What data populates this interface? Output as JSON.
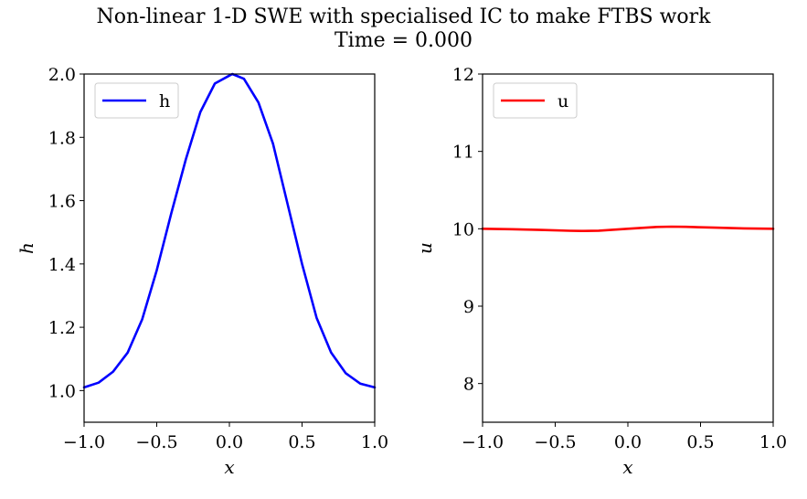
{
  "title": "Non-linear 1-D SWE with specialised IC to make FTBS work",
  "subtitle": "Time = 0.000",
  "chart_data": [
    {
      "type": "line",
      "xlabel": "x",
      "ylabel": "h",
      "xlim": [
        -1.0,
        1.0
      ],
      "ylim": [
        0.9,
        2.0
      ],
      "xticks": [
        -1.0,
        -0.5,
        0.0,
        0.5,
        1.0
      ],
      "xtick_labels": [
        "−1.0",
        "−0.5",
        "0.0",
        "0.5",
        "1.0"
      ],
      "yticks": [
        1.0,
        1.2,
        1.4,
        1.6,
        1.8,
        2.0
      ],
      "ytick_labels": [
        "1.0",
        "1.2",
        "1.4",
        "1.6",
        "1.8",
        "2.0"
      ],
      "legend": "top-left",
      "grid": false,
      "series": [
        {
          "name": "h",
          "color": "#0000ff",
          "x": [
            -1.0,
            -0.9,
            -0.8,
            -0.7,
            -0.6,
            -0.5,
            -0.4,
            -0.3,
            -0.2,
            -0.1,
            0.0,
            0.02,
            0.1,
            0.2,
            0.3,
            0.4,
            0.5,
            0.6,
            0.7,
            0.8,
            0.9,
            1.0
          ],
          "y": [
            1.01,
            1.025,
            1.06,
            1.12,
            1.225,
            1.38,
            1.56,
            1.73,
            1.88,
            1.97,
            1.995,
            2.0,
            1.985,
            1.91,
            1.78,
            1.59,
            1.4,
            1.23,
            1.12,
            1.055,
            1.022,
            1.01
          ]
        }
      ]
    },
    {
      "type": "line",
      "xlabel": "x",
      "ylabel": "u",
      "xlim": [
        -1.0,
        1.0
      ],
      "ylim": [
        7.5,
        12.0
      ],
      "xticks": [
        -1.0,
        -0.5,
        0.0,
        0.5,
        1.0
      ],
      "xtick_labels": [
        "−1.0",
        "−0.5",
        "0.0",
        "0.5",
        "1.0"
      ],
      "yticks": [
        8,
        9,
        10,
        11,
        12
      ],
      "ytick_labels": [
        "8",
        "9",
        "10",
        "11",
        "12"
      ],
      "legend": "top-left",
      "grid": false,
      "series": [
        {
          "name": "u",
          "color": "#ff0000",
          "x": [
            -1.0,
            -0.8,
            -0.6,
            -0.4,
            -0.3,
            -0.2,
            0.0,
            0.2,
            0.3,
            0.4,
            0.6,
            0.8,
            1.0
          ],
          "y": [
            10.0,
            9.995,
            9.985,
            9.975,
            9.972,
            9.976,
            10.0,
            10.024,
            10.028,
            10.025,
            10.015,
            10.005,
            10.0
          ]
        }
      ]
    }
  ]
}
